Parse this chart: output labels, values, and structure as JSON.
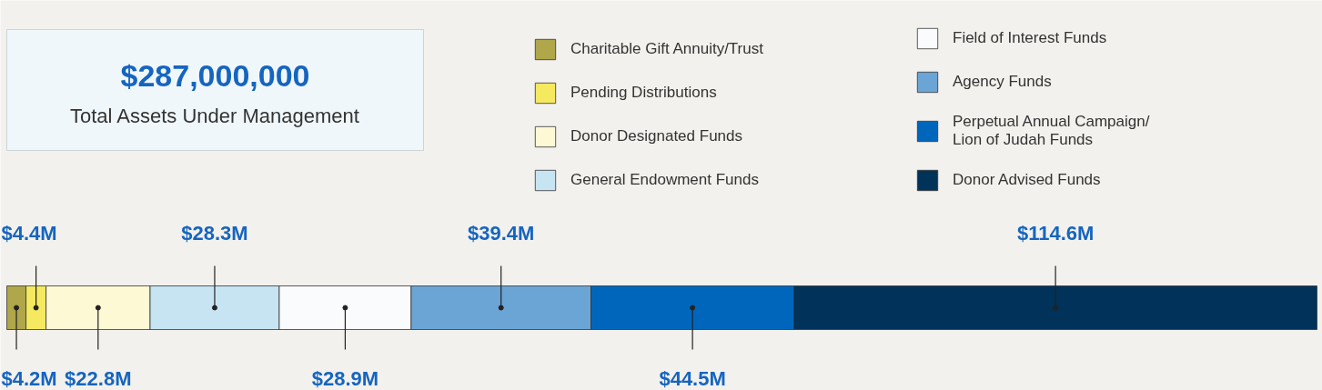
{
  "chart_data": {
    "type": "bar",
    "orientation": "horizontal",
    "stacked": true,
    "title": "$287,000,000",
    "subtitle": "Total Assets Under Management",
    "categories": [
      null
    ],
    "legend": "top right",
    "series": [
      {
        "name": "Charitable Gift Annuity/Trust",
        "color": "#b0a64a",
        "values": [
          4.2
        ],
        "value_labels": [
          "$4.2M"
        ]
      },
      {
        "name": "Pending Distributions",
        "color": "#f5e960",
        "values": [
          4.4
        ],
        "value_labels": [
          "$4.4M"
        ]
      },
      {
        "name": "Donor Designated Funds",
        "color": "#fdf9d5",
        "values": [
          22.8
        ],
        "value_labels": [
          "$22.8M"
        ]
      },
      {
        "name": "General Endowment Funds",
        "color": "#c7e4f2",
        "values": [
          28.3
        ],
        "value_labels": [
          "$28.3M"
        ]
      },
      {
        "name": "Field of Interest Funds",
        "color": "#fafbfc",
        "values": [
          28.9
        ],
        "value_labels": [
          "$28.9M"
        ]
      },
      {
        "name": "Agency Funds",
        "color": "#6aa5d6",
        "values": [
          39.4
        ],
        "value_labels": [
          "$39.4M"
        ]
      },
      {
        "name": "Perpetual Annual Campaign/\nLion of Judah Funds",
        "color": "#0066bb",
        "values": [
          44.5
        ],
        "value_labels": [
          "$44.5M"
        ]
      },
      {
        "name": "Donor Advised Funds",
        "color": "#00325a",
        "values": [
          114.6
        ],
        "value_labels": [
          "$114.6M"
        ]
      }
    ]
  }
}
